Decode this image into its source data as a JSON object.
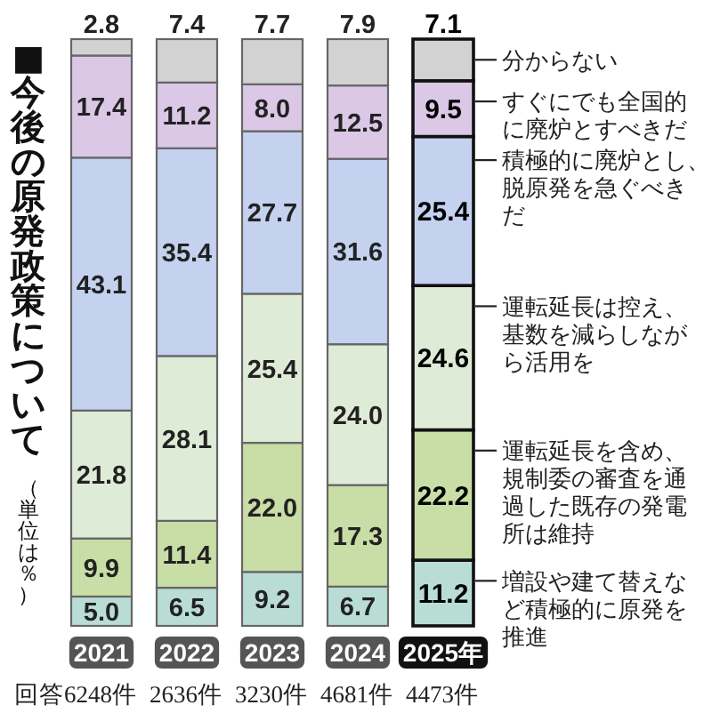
{
  "chart_data": {
    "type": "bar",
    "title": "■今後の原発政策について",
    "subtitle": "（単位は％）",
    "categories": [
      "2021",
      "2022",
      "2023",
      "2024",
      "2025年"
    ],
    "stacked": true,
    "ylim": [
      0,
      100
    ],
    "tick_labels": "x",
    "series": [
      {
        "name": "増設や建て替えなど積極的に原発を推進",
        "color": "#b9ddd4",
        "values": [
          5.0,
          6.5,
          9.2,
          6.7,
          11.2
        ],
        "value_labels": [
          "5.0",
          "6.5",
          "9.2",
          "6.7",
          "11.2"
        ]
      },
      {
        "name": "運転延長を含め、規制委の審査を通過した既存の発電所は維持",
        "color": "#c9dda6",
        "values": [
          9.9,
          11.4,
          22.0,
          17.3,
          22.2
        ],
        "value_labels": [
          "9.9",
          "11.4",
          "22.0",
          "17.3",
          "22.2"
        ]
      },
      {
        "name": "運転延長は控え、基数を減らしながら活用を",
        "color": "#deebd6",
        "values": [
          21.8,
          28.1,
          25.4,
          24.0,
          24.6
        ],
        "value_labels": [
          "21.8",
          "28.1",
          "25.4",
          "24.0",
          "24.6"
        ]
      },
      {
        "name": "積極的に廃炉とし、脱原発を急ぐべきだ",
        "color": "#c4d2f0",
        "values": [
          43.1,
          35.4,
          27.7,
          31.6,
          25.4
        ],
        "value_labels": [
          "43.1",
          "35.4",
          "27.7",
          "31.6",
          "25.4"
        ]
      },
      {
        "name": "すぐにでも全国的に廃炉とすべきだ",
        "color": "#dbc8e7",
        "values": [
          17.4,
          11.2,
          8.0,
          12.5,
          9.5
        ],
        "value_labels": [
          "17.4",
          "11.2",
          "8.0",
          "12.5",
          "9.5"
        ]
      },
      {
        "name": "分からない",
        "color": "#d2d2d2",
        "values": [
          2.8,
          7.4,
          7.7,
          7.9,
          7.1
        ],
        "value_labels": [
          "2.8",
          "7.4",
          "7.7",
          "7.9",
          "7.1"
        ]
      }
    ],
    "annotations": [
      "回答6248件",
      "2636件",
      "3230件",
      "4681件",
      "4473件"
    ]
  }
}
